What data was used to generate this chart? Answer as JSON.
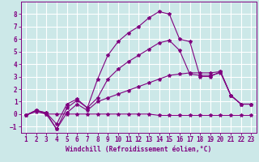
{
  "xlabel": "Windchill (Refroidissement éolien,°C)",
  "background_color": "#cce8e8",
  "grid_color": "#ffffff",
  "line_color": "#800080",
  "x_hours": [
    1,
    2,
    3,
    4,
    5,
    6,
    7,
    8,
    9,
    10,
    11,
    12,
    13,
    14,
    15,
    16,
    17,
    18,
    19,
    20,
    21,
    22,
    23
  ],
  "line1_y": [
    -0.1,
    0.3,
    0.1,
    -0.8,
    0.8,
    1.2,
    0.5,
    2.8,
    4.7,
    5.8,
    6.5,
    7.0,
    7.7,
    8.2,
    8.0,
    6.0,
    5.8,
    3.0,
    3.0,
    3.4,
    1.5,
    0.8,
    0.8
  ],
  "line2_y": [
    -0.1,
    0.3,
    0.0,
    -1.2,
    0.1,
    0.8,
    0.3,
    1.0,
    1.3,
    1.6,
    1.9,
    2.2,
    2.5,
    2.8,
    3.1,
    3.2,
    3.3,
    3.3,
    3.3,
    3.4,
    1.5,
    0.8,
    0.8
  ],
  "line3_y": [
    -0.1,
    0.2,
    0.0,
    0.0,
    0.0,
    0.0,
    0.0,
    0.0,
    0.0,
    0.0,
    0.0,
    0.0,
    0.0,
    -0.1,
    -0.1,
    -0.1,
    -0.1,
    -0.1,
    -0.1,
    -0.1,
    -0.1,
    -0.1,
    -0.1
  ],
  "line4_y": [
    -0.1,
    0.3,
    0.1,
    -1.2,
    0.5,
    1.1,
    0.5,
    1.3,
    2.8,
    3.6,
    4.2,
    4.7,
    5.2,
    5.7,
    5.9,
    5.1,
    3.2,
    3.1,
    3.1,
    3.3,
    1.5,
    0.8,
    0.8
  ],
  "ylim": [
    -1.5,
    9.0
  ],
  "xlim": [
    0.5,
    23.5
  ],
  "yticks": [
    -1,
    0,
    1,
    2,
    3,
    4,
    5,
    6,
    7,
    8
  ],
  "xticks": [
    1,
    2,
    3,
    4,
    5,
    6,
    7,
    8,
    9,
    10,
    11,
    12,
    13,
    14,
    15,
    16,
    17,
    18,
    19,
    20,
    21,
    22,
    23
  ],
  "tick_fontsize": 5.5,
  "xlabel_fontsize": 5.8
}
